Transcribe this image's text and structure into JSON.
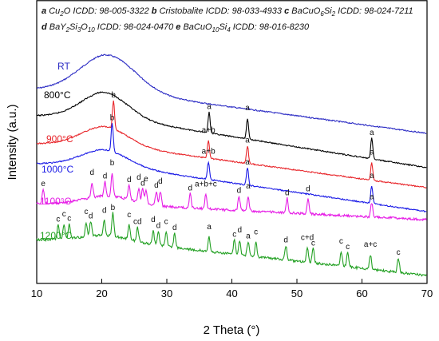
{
  "chart_data": {
    "type": "line",
    "title": "",
    "xlabel": "2 Theta (°)",
    "ylabel": "Intensity (a.u.)",
    "xlim": [
      10,
      70
    ],
    "xticks": [
      "10",
      "20",
      "30",
      "40",
      "50",
      "60",
      "70"
    ],
    "grid": false,
    "legend": {
      "placement": "top-left",
      "entries": [
        {
          "key": "a",
          "phase": "Cu",
          "sub1": "2",
          "rest": "O  ICDD: 98-005-3322"
        },
        {
          "key": "b",
          "phase": "Cristobalite ICDD: 98-033-4933"
        },
        {
          "key": "c",
          "phase": "BaCuO",
          "sub1": "6",
          "mid": "Si",
          "sub2": "2",
          "rest": "  ICDD: 98-024-7211"
        },
        {
          "key": "d",
          "phase": "BaY",
          "sub1": "2",
          "mid": "Si",
          "sub2": "3",
          "mid2": "O",
          "sub3": "10",
          "rest": "  ICDD: 98-024-0470"
        },
        {
          "key": "e",
          "phase": "BaCuO",
          "sub1": "10",
          "mid": "Si",
          "sub2": "4",
          "rest": " ICDD: 98-016-8230"
        }
      ]
    },
    "series": [
      {
        "name": "RT",
        "color": "#2b2bc4",
        "peaks": []
      },
      {
        "name": "800°C",
        "color": "#000000",
        "peaks": [
          {
            "x": 36.5,
            "label": "a"
          },
          {
            "x": 42.4,
            "label": "a"
          },
          {
            "x": 61.5,
            "label": "a"
          }
        ]
      },
      {
        "name": "900°C",
        "color": "#e8262b",
        "peaks": [
          {
            "x": 21.8,
            "label": "b"
          },
          {
            "x": 36.4,
            "label": "a+b"
          },
          {
            "x": 42.4,
            "label": "a"
          },
          {
            "x": 61.5,
            "label": "a"
          }
        ]
      },
      {
        "name": "1000°C",
        "color": "#1a1ae6",
        "peaks": [
          {
            "x": 21.6,
            "label": "b"
          },
          {
            "x": 36.4,
            "label": "a+b"
          },
          {
            "x": 42.4,
            "label": "a"
          },
          {
            "x": 61.5,
            "label": "a"
          }
        ]
      },
      {
        "name": "1100°C",
        "color": "#e61ce6",
        "peaks": [
          {
            "x": 11.0,
            "label": "e"
          },
          {
            "x": 18.5,
            "label": "d"
          },
          {
            "x": 20.5,
            "label": "d"
          },
          {
            "x": 21.6,
            "label": "b"
          },
          {
            "x": 24.2,
            "label": "d"
          },
          {
            "x": 25.7,
            "label": "d"
          },
          {
            "x": 26.3,
            "label": "d"
          },
          {
            "x": 26.8,
            "label": "e"
          },
          {
            "x": 28.4,
            "label": "d"
          },
          {
            "x": 29.0,
            "label": "d"
          },
          {
            "x": 33.6,
            "label": "d"
          },
          {
            "x": 36.0,
            "label": "a+b+c"
          },
          {
            "x": 41.1,
            "label": "d"
          },
          {
            "x": 42.5,
            "label": "a"
          },
          {
            "x": 48.5,
            "label": "d"
          },
          {
            "x": 51.7,
            "label": "d"
          },
          {
            "x": 61.5,
            "label": "a"
          }
        ]
      },
      {
        "name": "1200°C",
        "color": "#22a022",
        "peaks": [
          {
            "x": 13.3,
            "label": "c"
          },
          {
            "x": 14.2,
            "label": "c"
          },
          {
            "x": 15.0,
            "label": "c"
          },
          {
            "x": 17.6,
            "label": "c"
          },
          {
            "x": 18.3,
            "label": "d"
          },
          {
            "x": 20.4,
            "label": "d"
          },
          {
            "x": 21.7,
            "label": "b"
          },
          {
            "x": 24.2,
            "label": "c"
          },
          {
            "x": 25.5,
            "label": "cd"
          },
          {
            "x": 27.9,
            "label": "d"
          },
          {
            "x": 28.7,
            "label": "d"
          },
          {
            "x": 29.9,
            "label": "c"
          },
          {
            "x": 31.2,
            "label": "d"
          },
          {
            "x": 36.5,
            "label": "a"
          },
          {
            "x": 40.4,
            "label": "c"
          },
          {
            "x": 41.2,
            "label": "d"
          },
          {
            "x": 42.5,
            "label": "a"
          },
          {
            "x": 43.7,
            "label": "c"
          },
          {
            "x": 48.3,
            "label": "d"
          },
          {
            "x": 51.6,
            "label": "c+d"
          },
          {
            "x": 52.5,
            "label": "c"
          },
          {
            "x": 56.8,
            "label": "c"
          },
          {
            "x": 57.8,
            "label": "c"
          },
          {
            "x": 61.3,
            "label": "a+c"
          },
          {
            "x": 65.6,
            "label": "c"
          }
        ]
      }
    ]
  }
}
